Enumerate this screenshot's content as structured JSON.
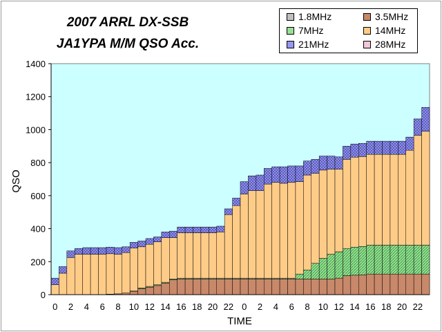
{
  "chart_data": {
    "type": "bar",
    "stacked": true,
    "title": "2007 ARRL DX-SSB",
    "subtitle": "JA1YPA  M/M  QSO Acc.",
    "xlabel": "TIME",
    "ylabel": "QSO",
    "ylim": [
      0,
      1400
    ],
    "yticks": [
      0,
      200,
      400,
      600,
      800,
      1000,
      1200,
      1400
    ],
    "xtick_labels": [
      "0",
      "2",
      "4",
      "6",
      "8",
      "10",
      "12",
      "14",
      "16",
      "18",
      "20",
      "22",
      "0",
      "2",
      "4",
      "6",
      "8",
      "10",
      "12",
      "14",
      "16",
      "18",
      "20",
      "22"
    ],
    "grid": false,
    "legend_position": "top-right",
    "colors": {
      "1.8MHz": "#c0c0c0",
      "3.5MHz": "#c8886a",
      "7MHz": "#98e098",
      "14MHz": "#ffcc88",
      "21MHz": "#9898f0",
      "28MHz": "#f0c8d8",
      "plot_bg": "#ccffff"
    },
    "series": [
      {
        "name": "1.8MHz",
        "values": [
          0,
          0,
          0,
          0,
          0,
          0,
          0,
          0,
          0,
          0,
          0,
          0,
          0,
          0,
          0,
          0,
          0,
          0,
          0,
          0,
          0,
          0,
          0,
          0,
          0,
          0,
          0,
          0,
          0,
          0,
          0,
          0,
          0,
          0,
          0,
          0,
          0,
          0,
          0,
          0,
          0,
          0,
          0,
          0,
          0,
          0,
          0,
          0
        ]
      },
      {
        "name": "3.5MHz",
        "values": [
          0,
          0,
          0,
          0,
          0,
          0,
          0,
          3,
          5,
          10,
          20,
          35,
          45,
          55,
          70,
          90,
          95,
          95,
          95,
          95,
          95,
          95,
          95,
          95,
          95,
          95,
          95,
          95,
          95,
          95,
          95,
          95,
          95,
          95,
          95,
          95,
          100,
          115,
          118,
          120,
          125,
          125,
          125,
          125,
          125,
          125,
          125,
          125
        ]
      },
      {
        "name": "7MHz",
        "values": [
          0,
          0,
          0,
          0,
          0,
          0,
          0,
          0,
          0,
          0,
          2,
          5,
          5,
          5,
          5,
          5,
          5,
          5,
          5,
          5,
          5,
          5,
          5,
          5,
          5,
          5,
          5,
          5,
          5,
          5,
          5,
          30,
          55,
          95,
          125,
          150,
          160,
          165,
          170,
          172,
          175,
          175,
          175,
          175,
          175,
          175,
          175,
          175
        ]
      },
      {
        "name": "14MHz",
        "values": [
          60,
          130,
          225,
          245,
          245,
          245,
          245,
          245,
          240,
          245,
          260,
          250,
          255,
          260,
          270,
          250,
          275,
          275,
          275,
          275,
          275,
          280,
          385,
          440,
          510,
          530,
          530,
          570,
          580,
          575,
          580,
          560,
          575,
          545,
          535,
          515,
          500,
          540,
          545,
          545,
          550,
          550,
          550,
          550,
          550,
          575,
          665,
          690
        ]
      },
      {
        "name": "21MHz",
        "values": [
          40,
          40,
          40,
          35,
          40,
          40,
          40,
          40,
          40,
          35,
          35,
          35,
          35,
          30,
          35,
          40,
          35,
          35,
          35,
          35,
          35,
          35,
          35,
          45,
          75,
          90,
          95,
          95,
          95,
          100,
          100,
          95,
          85,
          85,
          85,
          80,
          75,
          80,
          80,
          80,
          80,
          80,
          80,
          80,
          80,
          80,
          100,
          145
        ]
      },
      {
        "name": "28MHz",
        "values": [
          0,
          0,
          0,
          0,
          0,
          0,
          0,
          0,
          0,
          0,
          0,
          0,
          0,
          0,
          0,
          0,
          0,
          0,
          0,
          0,
          0,
          0,
          0,
          0,
          0,
          0,
          0,
          0,
          0,
          0,
          0,
          0,
          0,
          0,
          0,
          0,
          0,
          0,
          0,
          0,
          0,
          0,
          0,
          0,
          0,
          0,
          0,
          0
        ]
      }
    ]
  }
}
